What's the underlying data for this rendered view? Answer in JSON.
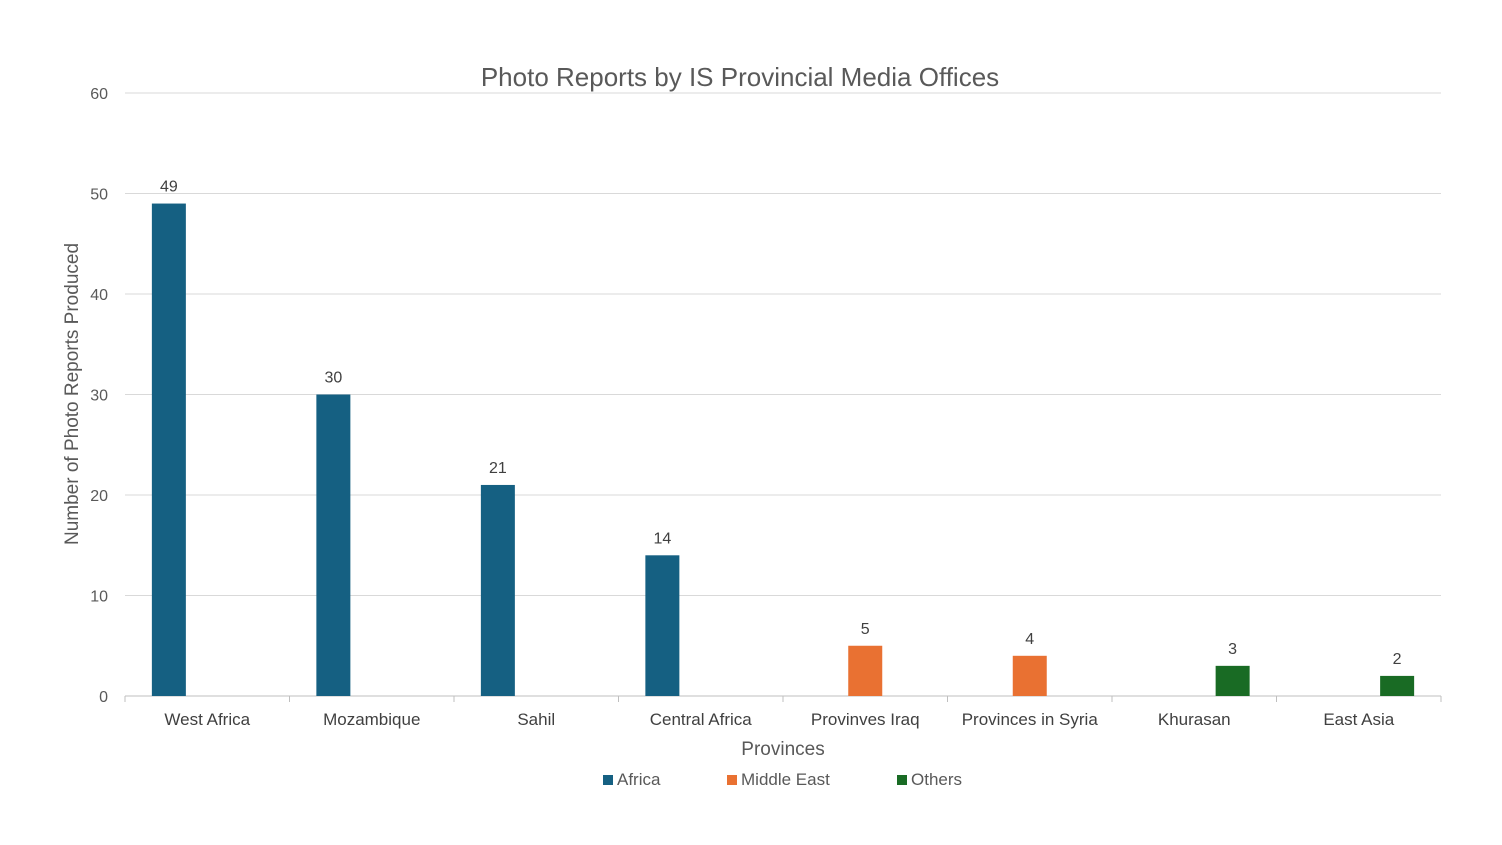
{
  "chart_data": {
    "type": "bar",
    "title": "Photo Reports by IS Provincial Media Offices",
    "xlabel": "Provinces",
    "ylabel": "Number of Photo Reports Produced",
    "ylim": [
      0,
      60
    ],
    "yticks": [
      0,
      10,
      20,
      30,
      40,
      50,
      60
    ],
    "grid": true,
    "legend_position": "bottom",
    "categories": [
      "West Africa",
      "Mozambique",
      "Sahil",
      "Central Africa",
      "Provinves Iraq",
      "Provinces in Syria",
      "Khurasan",
      "East Asia"
    ],
    "series": [
      {
        "name": "Africa",
        "color": "#156082",
        "values": [
          49,
          30,
          21,
          14,
          null,
          null,
          null,
          null
        ]
      },
      {
        "name": "Middle East",
        "color": "#E97132",
        "values": [
          null,
          null,
          null,
          null,
          5,
          4,
          null,
          null
        ]
      },
      {
        "name": "Others",
        "color": "#196B24",
        "values": [
          null,
          null,
          null,
          null,
          null,
          null,
          3,
          2
        ]
      }
    ]
  }
}
